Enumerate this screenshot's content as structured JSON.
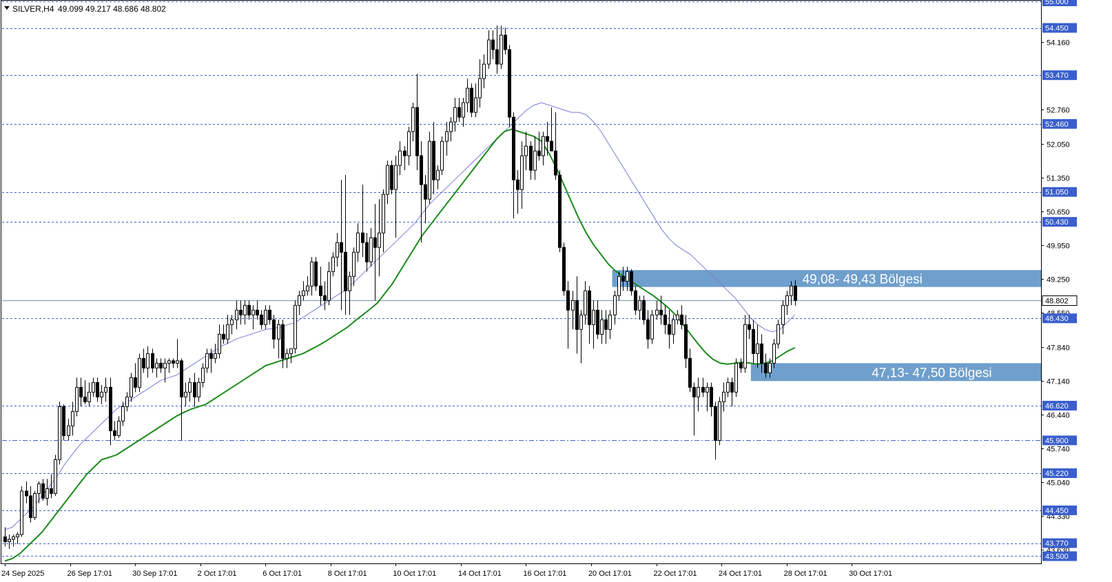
{
  "header": {
    "symbol_label": "SILVER,H4",
    "ohlc_label": "49.099 49.217 48.686 48.802"
  },
  "colors": {
    "background": "#ffffff",
    "frame": "#000000",
    "level_line": "#3a5fcd",
    "ma_fast": "#7b7bd8",
    "ma_slow": "#1a8a1a",
    "zone_fill": "#6f9fcc",
    "zone_text": "#ffffff",
    "badge_bg": "#3a5fcd",
    "badge_text": "#ffffff",
    "current_price_line": "#7a95b8",
    "candle": "#000000"
  },
  "chart_data": {
    "type": "candlestick",
    "symbol": "SILVER",
    "timeframe": "H4",
    "ylim": [
      43.35,
      55.0
    ],
    "y_ticks": [
      54.16,
      52.76,
      52.05,
      51.35,
      50.65,
      49.95,
      49.25,
      48.55,
      47.84,
      47.14,
      46.44,
      45.74,
      45.04,
      44.33,
      43.63
    ],
    "y_tick_labels": [
      "54.160",
      "52.760",
      "52.050",
      "51.350",
      "50.650",
      "49.950",
      "49.250",
      "48.550",
      "47.840",
      "47.140",
      "46.440",
      "45.740",
      "45.040",
      "44.330",
      "43.630"
    ],
    "x_labels": [
      "24 Sep 2025",
      "26 Sep 17:01",
      "30 Sep 17:01",
      "2 Oct 17:01",
      "6 Oct 17:01",
      "8 Oct 17:01",
      "10 Oct 17:01",
      "14 Oct 17:01",
      "16 Oct 17:01",
      "20 Oct 17:01",
      "22 Oct 17:01",
      "24 Oct 17:01",
      "28 Oct 17:01",
      "30 Oct 17:01"
    ],
    "levels": [
      {
        "value": 55.0,
        "label": "55.000",
        "style": "dash"
      },
      {
        "value": 54.45,
        "label": "54.450",
        "style": "dash"
      },
      {
        "value": 53.47,
        "label": "53.470",
        "style": "dash"
      },
      {
        "value": 52.46,
        "label": "52.460",
        "style": "dash"
      },
      {
        "value": 51.05,
        "label": "51.050",
        "style": "dash"
      },
      {
        "value": 50.43,
        "label": "50.430",
        "style": "dash"
      },
      {
        "value": 48.43,
        "label": "48.430",
        "style": "dash"
      },
      {
        "value": 46.62,
        "label": "46.620",
        "style": "dash"
      },
      {
        "value": 45.9,
        "label": "45.900",
        "style": "dashdot"
      },
      {
        "value": 45.22,
        "label": "45.220",
        "style": "dash"
      },
      {
        "value": 44.45,
        "label": "44.450",
        "style": "dash"
      },
      {
        "value": 43.77,
        "label": "43.770",
        "style": "dash"
      },
      {
        "value": 43.5,
        "label": "43.500",
        "style": "dash"
      }
    ],
    "current_price": {
      "value": 48.802,
      "label": "48.802"
    },
    "zones": [
      {
        "low": 49.08,
        "high": 49.43,
        "label": "49,08- 49,43 Bölgesi",
        "start_index": 145
      },
      {
        "low": 47.13,
        "high": 47.5,
        "label": "47,13- 47,50 Bölgesi",
        "start_index": 178
      }
    ],
    "candles": [
      [
        43.9,
        44.1,
        43.7,
        43.8
      ],
      [
        43.8,
        43.95,
        43.65,
        43.85
      ],
      [
        43.85,
        43.95,
        43.7,
        43.9
      ],
      [
        43.9,
        44.0,
        43.75,
        43.95
      ],
      [
        43.95,
        44.95,
        43.9,
        44.85
      ],
      [
        44.85,
        45.05,
        44.6,
        44.75
      ],
      [
        44.75,
        44.95,
        44.2,
        44.3
      ],
      [
        44.3,
        44.85,
        44.25,
        44.8
      ],
      [
        44.8,
        45.05,
        44.6,
        45.0
      ],
      [
        45.0,
        45.1,
        44.65,
        44.7
      ],
      [
        44.7,
        45.1,
        44.55,
        44.9
      ],
      [
        44.9,
        45.2,
        44.7,
        44.8
      ],
      [
        44.8,
        45.6,
        44.75,
        45.5
      ],
      [
        45.5,
        46.7,
        45.4,
        46.6
      ],
      [
        46.6,
        46.65,
        45.9,
        46.0
      ],
      [
        46.0,
        46.35,
        45.9,
        46.2
      ],
      [
        46.2,
        46.7,
        46.0,
        46.5
      ],
      [
        46.5,
        47.2,
        46.4,
        47.0
      ],
      [
        47.0,
        47.2,
        46.6,
        46.8
      ],
      [
        46.8,
        47.15,
        46.65,
        46.7
      ],
      [
        46.7,
        47.1,
        46.6,
        46.9
      ],
      [
        46.9,
        47.2,
        46.8,
        47.1
      ],
      [
        47.1,
        47.2,
        46.7,
        46.8
      ],
      [
        46.8,
        47.05,
        46.65,
        46.9
      ],
      [
        46.9,
        47.2,
        46.7,
        47.0
      ],
      [
        47.0,
        47.2,
        45.8,
        46.1
      ],
      [
        46.1,
        46.3,
        45.9,
        46.0
      ],
      [
        46.0,
        46.4,
        45.95,
        46.3
      ],
      [
        46.3,
        46.7,
        46.2,
        46.6
      ],
      [
        46.6,
        46.9,
        46.5,
        46.8
      ],
      [
        46.8,
        47.3,
        46.7,
        47.2
      ],
      [
        47.2,
        47.5,
        46.9,
        47.0
      ],
      [
        47.0,
        47.7,
        46.9,
        47.6
      ],
      [
        47.6,
        47.8,
        47.3,
        47.4
      ],
      [
        47.4,
        47.85,
        47.2,
        47.7
      ],
      [
        47.7,
        47.8,
        47.3,
        47.4
      ],
      [
        47.4,
        47.6,
        47.2,
        47.5
      ],
      [
        47.5,
        47.6,
        47.3,
        47.4
      ],
      [
        47.4,
        47.6,
        47.1,
        47.5
      ],
      [
        47.5,
        47.6,
        47.3,
        47.55
      ],
      [
        47.55,
        47.6,
        47.4,
        47.5
      ],
      [
        47.5,
        48.0,
        47.4,
        47.55
      ],
      [
        47.55,
        47.6,
        45.9,
        46.8
      ],
      [
        46.8,
        47.1,
        46.6,
        46.9
      ],
      [
        46.9,
        47.2,
        46.7,
        47.1
      ],
      [
        47.1,
        47.3,
        46.6,
        46.8
      ],
      [
        46.8,
        47.2,
        46.7,
        47.1
      ],
      [
        47.1,
        47.5,
        47.0,
        47.4
      ],
      [
        47.4,
        47.8,
        47.3,
        47.7
      ],
      [
        47.7,
        47.8,
        47.3,
        47.6
      ],
      [
        47.6,
        47.9,
        47.5,
        47.7
      ],
      [
        47.7,
        48.3,
        47.6,
        48.1
      ],
      [
        48.1,
        48.3,
        47.9,
        48.0
      ],
      [
        48.0,
        48.5,
        47.9,
        48.3
      ],
      [
        48.3,
        48.5,
        48.1,
        48.4
      ],
      [
        48.4,
        48.8,
        48.2,
        48.6
      ],
      [
        48.6,
        48.8,
        48.3,
        48.5
      ],
      [
        48.5,
        48.8,
        48.3,
        48.7
      ],
      [
        48.7,
        48.8,
        48.4,
        48.5
      ],
      [
        48.5,
        48.7,
        48.2,
        48.6
      ],
      [
        48.6,
        48.8,
        48.4,
        48.5
      ],
      [
        48.5,
        48.6,
        48.2,
        48.3
      ],
      [
        48.3,
        48.7,
        48.2,
        48.6
      ],
      [
        48.6,
        48.7,
        48.3,
        48.4
      ],
      [
        48.4,
        48.5,
        47.8,
        48.0
      ],
      [
        48.0,
        48.4,
        47.6,
        48.3
      ],
      [
        48.3,
        48.4,
        47.4,
        47.6
      ],
      [
        47.6,
        47.8,
        47.4,
        47.7
      ],
      [
        47.7,
        47.8,
        47.5,
        47.8
      ],
      [
        47.8,
        48.8,
        47.7,
        48.7
      ],
      [
        48.7,
        49.0,
        48.5,
        48.9
      ],
      [
        48.9,
        49.2,
        48.8,
        49.0
      ],
      [
        49.0,
        49.3,
        48.9,
        49.1
      ],
      [
        49.1,
        49.7,
        48.9,
        49.6
      ],
      [
        49.6,
        49.7,
        49.0,
        49.1
      ],
      [
        49.1,
        49.5,
        48.7,
        48.9
      ],
      [
        48.9,
        49.2,
        48.6,
        48.8
      ],
      [
        48.8,
        49.6,
        48.7,
        49.4
      ],
      [
        49.4,
        49.8,
        49.3,
        49.7
      ],
      [
        49.7,
        50.2,
        49.5,
        50.0
      ],
      [
        50.0,
        51.3,
        48.6,
        49.8
      ],
      [
        49.8,
        51.4,
        48.5,
        49.0
      ],
      [
        49.0,
        49.4,
        48.5,
        49.3
      ],
      [
        49.3,
        49.9,
        49.1,
        49.8
      ],
      [
        49.8,
        50.4,
        49.6,
        50.2
      ],
      [
        50.2,
        51.2,
        49.7,
        50.0
      ],
      [
        50.0,
        50.2,
        49.4,
        49.6
      ],
      [
        49.6,
        50.3,
        49.5,
        50.1
      ],
      [
        50.1,
        50.8,
        48.8,
        49.9
      ],
      [
        49.9,
        50.9,
        49.3,
        50.2
      ],
      [
        50.2,
        51.1,
        49.8,
        51.0
      ],
      [
        51.0,
        51.7,
        50.8,
        51.6
      ],
      [
        51.6,
        51.7,
        51.0,
        51.1
      ],
      [
        51.1,
        51.8,
        50.1,
        51.6
      ],
      [
        51.6,
        52.1,
        51.4,
        51.9
      ],
      [
        51.9,
        52.0,
        51.5,
        51.8
      ],
      [
        51.8,
        52.4,
        51.6,
        52.3
      ],
      [
        52.3,
        52.9,
        52.1,
        52.8
      ],
      [
        52.8,
        53.5,
        51.5,
        51.8
      ],
      [
        51.8,
        52.1,
        50.0,
        51.2
      ],
      [
        51.2,
        51.4,
        50.4,
        50.9
      ],
      [
        50.9,
        52.3,
        50.8,
        52.1
      ],
      [
        52.1,
        52.5,
        51.0,
        51.3
      ],
      [
        51.3,
        51.6,
        51.1,
        51.5
      ],
      [
        51.5,
        52.2,
        51.4,
        52.1
      ],
      [
        52.1,
        52.5,
        51.8,
        52.3
      ],
      [
        52.3,
        52.6,
        52.1,
        52.5
      ],
      [
        52.5,
        53.0,
        52.3,
        52.8
      ],
      [
        52.8,
        53.0,
        52.5,
        52.6
      ],
      [
        52.6,
        53.0,
        52.4,
        52.9
      ],
      [
        52.9,
        53.4,
        52.7,
        53.2
      ],
      [
        53.2,
        53.3,
        52.6,
        52.7
      ],
      [
        52.7,
        53.3,
        52.6,
        53.0
      ],
      [
        53.0,
        53.8,
        52.8,
        53.4
      ],
      [
        53.4,
        53.9,
        53.2,
        53.7
      ],
      [
        53.7,
        54.4,
        53.6,
        54.2
      ],
      [
        54.2,
        54.4,
        53.8,
        54.0
      ],
      [
        54.0,
        54.5,
        53.5,
        53.7
      ],
      [
        53.7,
        54.5,
        53.6,
        54.3
      ],
      [
        54.3,
        54.45,
        53.9,
        54.0
      ],
      [
        54.0,
        54.1,
        52.4,
        52.6
      ],
      [
        52.6,
        52.7,
        50.5,
        51.3
      ],
      [
        51.3,
        51.5,
        50.6,
        51.1
      ],
      [
        51.1,
        52.1,
        50.7,
        51.8
      ],
      [
        51.8,
        52.3,
        51.5,
        52.0
      ],
      [
        52.0,
        52.1,
        51.3,
        51.5
      ],
      [
        51.5,
        52.2,
        51.3,
        51.9
      ],
      [
        51.9,
        52.3,
        51.7,
        51.8
      ],
      [
        51.8,
        52.3,
        51.6,
        52.2
      ],
      [
        52.2,
        52.5,
        51.8,
        52.1
      ],
      [
        52.1,
        52.8,
        51.9,
        51.9
      ],
      [
        51.9,
        52.7,
        51.3,
        51.4
      ],
      [
        51.4,
        51.5,
        49.8,
        49.9
      ],
      [
        49.9,
        50.0,
        48.9,
        49.0
      ],
      [
        49.0,
        49.2,
        47.8,
        48.6
      ],
      [
        48.6,
        49.0,
        48.2,
        48.8
      ],
      [
        48.8,
        49.3,
        47.7,
        48.2
      ],
      [
        48.2,
        48.6,
        47.5,
        48.5
      ],
      [
        48.5,
        49.2,
        48.3,
        49.0
      ],
      [
        49.0,
        49.1,
        47.9,
        48.3
      ],
      [
        48.3,
        48.8,
        47.8,
        48.6
      ],
      [
        48.6,
        48.8,
        48.0,
        48.1
      ],
      [
        48.1,
        48.6,
        47.9,
        48.4
      ],
      [
        48.4,
        48.6,
        47.9,
        48.2
      ],
      [
        48.2,
        48.6,
        48.0,
        48.5
      ],
      [
        48.5,
        49.0,
        48.3,
        48.9
      ],
      [
        48.9,
        49.4,
        48.8,
        49.3
      ],
      [
        49.3,
        49.5,
        49.0,
        49.2
      ],
      [
        49.2,
        49.5,
        49.0,
        49.4
      ],
      [
        49.4,
        49.45,
        48.9,
        49.0
      ],
      [
        49.0,
        49.1,
        48.5,
        48.6
      ],
      [
        48.6,
        48.9,
        48.4,
        48.8
      ],
      [
        48.8,
        48.9,
        48.3,
        48.4
      ],
      [
        48.4,
        48.6,
        47.8,
        48.0
      ],
      [
        48.0,
        48.6,
        47.9,
        48.5
      ],
      [
        48.5,
        48.8,
        48.4,
        48.6
      ],
      [
        48.6,
        48.9,
        48.3,
        48.5
      ],
      [
        48.5,
        48.7,
        48.1,
        48.3
      ],
      [
        48.3,
        48.6,
        47.8,
        48.1
      ],
      [
        48.1,
        48.5,
        47.9,
        48.4
      ],
      [
        48.4,
        48.6,
        48.3,
        48.5
      ],
      [
        48.5,
        48.7,
        48.2,
        48.3
      ],
      [
        48.3,
        48.5,
        47.4,
        47.6
      ],
      [
        47.6,
        47.8,
        46.9,
        47.0
      ],
      [
        47.0,
        47.1,
        46.0,
        46.8
      ],
      [
        46.8,
        47.2,
        46.5,
        47.0
      ],
      [
        47.0,
        47.2,
        46.8,
        46.9
      ],
      [
        46.9,
        47.1,
        46.5,
        47.0
      ],
      [
        47.0,
        47.1,
        46.4,
        46.6
      ],
      [
        46.6,
        46.7,
        45.5,
        45.9
      ],
      [
        45.9,
        46.8,
        45.8,
        46.7
      ],
      [
        46.7,
        47.1,
        46.5,
        46.9
      ],
      [
        46.9,
        47.2,
        46.8,
        47.1
      ],
      [
        47.1,
        47.2,
        46.6,
        46.9
      ],
      [
        46.9,
        47.6,
        46.8,
        47.5
      ],
      [
        47.5,
        47.6,
        47.3,
        47.4
      ],
      [
        47.4,
        48.5,
        47.3,
        48.3
      ],
      [
        48.3,
        48.5,
        48.0,
        48.2
      ],
      [
        48.2,
        48.4,
        47.5,
        47.7
      ],
      [
        47.7,
        48.3,
        47.4,
        47.9
      ],
      [
        47.9,
        48.1,
        47.3,
        47.5
      ],
      [
        47.5,
        47.7,
        47.2,
        47.3
      ],
      [
        47.3,
        47.6,
        47.2,
        47.5
      ],
      [
        47.5,
        48.0,
        47.4,
        47.9
      ],
      [
        47.9,
        48.4,
        47.8,
        48.3
      ],
      [
        48.3,
        48.8,
        48.1,
        48.7
      ],
      [
        48.7,
        49.0,
        48.5,
        48.9
      ],
      [
        48.9,
        49.2,
        48.7,
        49.1
      ],
      [
        49.1,
        49.22,
        48.69,
        48.8
      ]
    ],
    "ma_fast_period_note": "",
    "ma_fast": [
      44.05,
      44.1,
      44.25,
      44.4,
      44.55,
      44.75,
      44.95,
      45.15,
      45.4,
      45.6,
      45.8,
      45.95,
      46.1,
      46.25,
      46.4,
      46.55,
      46.65,
      46.75,
      46.85,
      46.95,
      47.05,
      47.15,
      47.2,
      47.25,
      47.35,
      47.45,
      47.55,
      47.65,
      47.75,
      47.85,
      47.92,
      48.0,
      48.05,
      48.1,
      48.15,
      48.2,
      48.22,
      48.25,
      48.3,
      48.35,
      48.45,
      48.55,
      48.65,
      48.75,
      48.85,
      48.95,
      49.05,
      49.2,
      49.35,
      49.5,
      49.65,
      49.8,
      49.95,
      50.1,
      50.25,
      50.4,
      50.6,
      50.8,
      50.95,
      51.1,
      51.25,
      51.4,
      51.55,
      51.7,
      51.85,
      52.0,
      52.15,
      52.3,
      52.45,
      52.6,
      52.75,
      52.85,
      52.9,
      52.85,
      52.8,
      52.75,
      52.7,
      52.7,
      52.65,
      52.5,
      52.3,
      52.05,
      51.8,
      51.55,
      51.3,
      51.05,
      50.8,
      50.55,
      50.3,
      50.1,
      49.95,
      49.85,
      49.75,
      49.6,
      49.45,
      49.3,
      49.15,
      49.0,
      48.85,
      48.65,
      48.45,
      48.3,
      48.2,
      48.15,
      48.2,
      48.35,
      48.5
    ],
    "ma_slow": [
      43.4,
      43.45,
      43.55,
      43.7,
      43.85,
      44.0,
      44.2,
      44.4,
      44.6,
      44.8,
      45.0,
      45.2,
      45.35,
      45.5,
      45.55,
      45.6,
      45.7,
      45.8,
      45.9,
      46.0,
      46.1,
      46.2,
      46.3,
      46.4,
      46.48,
      46.55,
      46.6,
      46.65,
      46.75,
      46.85,
      46.95,
      47.05,
      47.15,
      47.25,
      47.35,
      47.45,
      47.5,
      47.55,
      47.6,
      47.65,
      47.7,
      47.78,
      47.86,
      47.95,
      48.05,
      48.15,
      48.25,
      48.38,
      48.5,
      48.62,
      48.75,
      48.95,
      49.15,
      49.4,
      49.65,
      49.9,
      50.15,
      50.35,
      50.55,
      50.75,
      50.95,
      51.15,
      51.35,
      51.55,
      51.75,
      51.95,
      52.15,
      52.3,
      52.35,
      52.3,
      52.25,
      52.2,
      52.1,
      51.85,
      51.55,
      51.2,
      50.85,
      50.5,
      50.2,
      49.95,
      49.75,
      49.55,
      49.4,
      49.3,
      49.2,
      49.1,
      49.0,
      48.9,
      48.78,
      48.65,
      48.5,
      48.3,
      48.1,
      47.9,
      47.72,
      47.58,
      47.5,
      47.48,
      47.5,
      47.52,
      47.5,
      47.48,
      47.5,
      47.55,
      47.65,
      47.75,
      47.82
    ],
    "ma_offset_index": 0
  }
}
